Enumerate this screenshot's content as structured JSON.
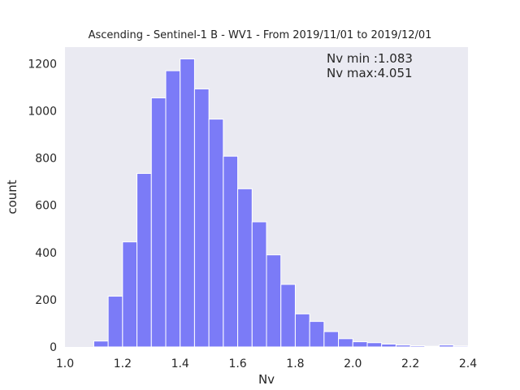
{
  "chart_data": {
    "type": "bar",
    "title": "Ascending - Sentinel-1 B - WV1 - From 2019/11/01 to 2019/12/01",
    "xlabel": "Nv",
    "ylabel": "count",
    "xlim": [
      1.0,
      2.4
    ],
    "ylim": [
      0,
      1270
    ],
    "x_ticks": [
      1.0,
      1.2,
      1.4,
      1.6,
      1.8,
      2.0,
      2.2,
      2.4
    ],
    "x_tick_labels": [
      "1.0",
      "1.2",
      "1.4",
      "1.6",
      "1.8",
      "2.0",
      "2.2",
      "2.4"
    ],
    "y_ticks": [
      0,
      200,
      400,
      600,
      800,
      1000,
      1200
    ],
    "y_tick_labels": [
      "0",
      "200",
      "400",
      "600",
      "800",
      "1000",
      "1200"
    ],
    "grid": false,
    "bar_color": "#7b7bf7",
    "background": "#eaeaf2",
    "bins": [
      {
        "x0": 1.1,
        "x1": 1.15,
        "value": 25
      },
      {
        "x0": 1.15,
        "x1": 1.2,
        "value": 215
      },
      {
        "x0": 1.2,
        "x1": 1.25,
        "value": 445
      },
      {
        "x0": 1.25,
        "x1": 1.3,
        "value": 735
      },
      {
        "x0": 1.3,
        "x1": 1.35,
        "value": 1055
      },
      {
        "x0": 1.35,
        "x1": 1.4,
        "value": 1170
      },
      {
        "x0": 1.4,
        "x1": 1.45,
        "value": 1220
      },
      {
        "x0": 1.45,
        "x1": 1.5,
        "value": 1093
      },
      {
        "x0": 1.5,
        "x1": 1.55,
        "value": 965
      },
      {
        "x0": 1.55,
        "x1": 1.6,
        "value": 808
      },
      {
        "x0": 1.6,
        "x1": 1.65,
        "value": 670
      },
      {
        "x0": 1.65,
        "x1": 1.7,
        "value": 530
      },
      {
        "x0": 1.7,
        "x1": 1.75,
        "value": 390
      },
      {
        "x0": 1.75,
        "x1": 1.8,
        "value": 265
      },
      {
        "x0": 1.8,
        "x1": 1.85,
        "value": 140
      },
      {
        "x0": 1.85,
        "x1": 1.9,
        "value": 108
      },
      {
        "x0": 1.9,
        "x1": 1.95,
        "value": 65
      },
      {
        "x0": 1.95,
        "x1": 2.0,
        "value": 35
      },
      {
        "x0": 2.0,
        "x1": 2.05,
        "value": 22
      },
      {
        "x0": 2.05,
        "x1": 2.1,
        "value": 18
      },
      {
        "x0": 2.1,
        "x1": 2.15,
        "value": 12
      },
      {
        "x0": 2.15,
        "x1": 2.2,
        "value": 8
      },
      {
        "x0": 2.2,
        "x1": 2.25,
        "value": 5
      },
      {
        "x0": 2.25,
        "x1": 2.3,
        "value": 3
      },
      {
        "x0": 2.3,
        "x1": 2.35,
        "value": 8
      },
      {
        "x0": 2.35,
        "x1": 2.4,
        "value": 4
      }
    ],
    "annotations": [
      "Nv min :1.083",
      "Nv max:4.051"
    ]
  }
}
